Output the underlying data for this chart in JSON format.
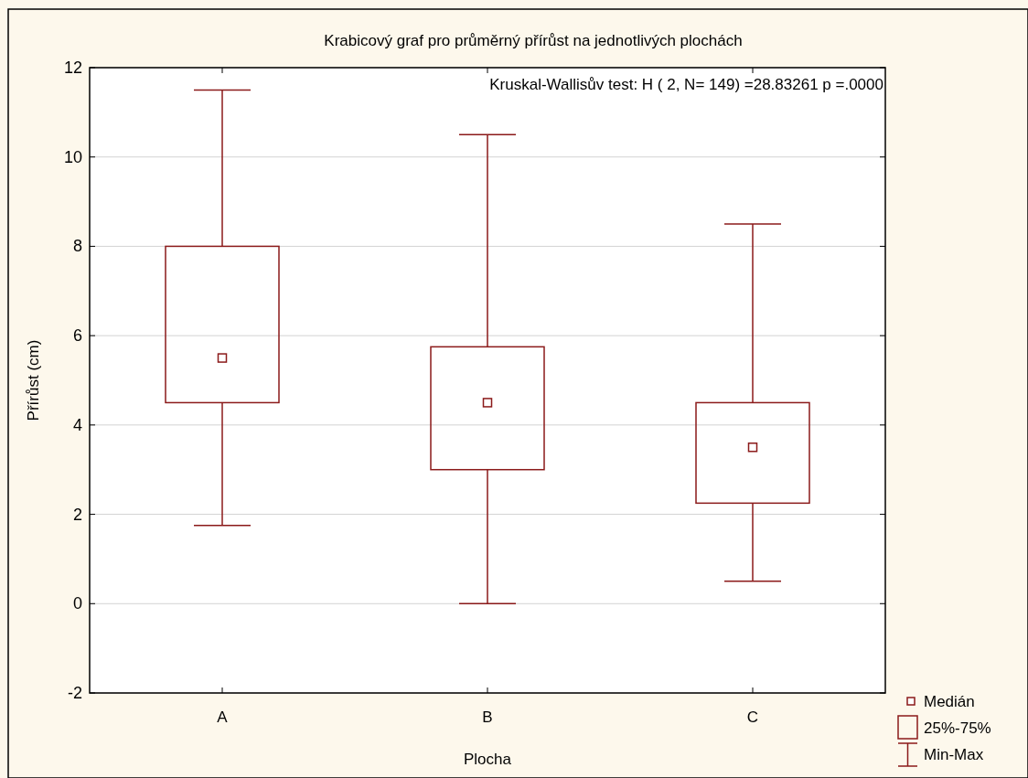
{
  "chart_data": {
    "type": "box",
    "title": "Krabicový graf pro průměrný přírůst na jednotlivých plochách",
    "xlabel": "Plocha",
    "ylabel": "Přírůst (cm)",
    "categories": [
      "A",
      "B",
      "C"
    ],
    "series": [
      {
        "color": "#8b1a1a",
        "boxes": [
          {
            "low": 1.75,
            "q1": 4.5,
            "median": 5.5,
            "q3": 8,
            "high": 11.5
          },
          {
            "low": 0,
            "q1": 3,
            "median": 4.5,
            "q3": 5.75,
            "high": 10.5
          },
          {
            "low": 0.5,
            "q1": 2.25,
            "median": 3.5,
            "q3": 4.5,
            "high": 8.5
          }
        ]
      }
    ],
    "ylim": [
      -2,
      12
    ],
    "yticks": [
      -2,
      0,
      2,
      4,
      6,
      8,
      10,
      12
    ],
    "grid": "y",
    "annotations": [
      "Kruskal-Wallisův test: H ( 2, N= 149) =28.83261 p =.0000",
      "Medián",
      "25%-75%",
      "Min-Max"
    ]
  }
}
